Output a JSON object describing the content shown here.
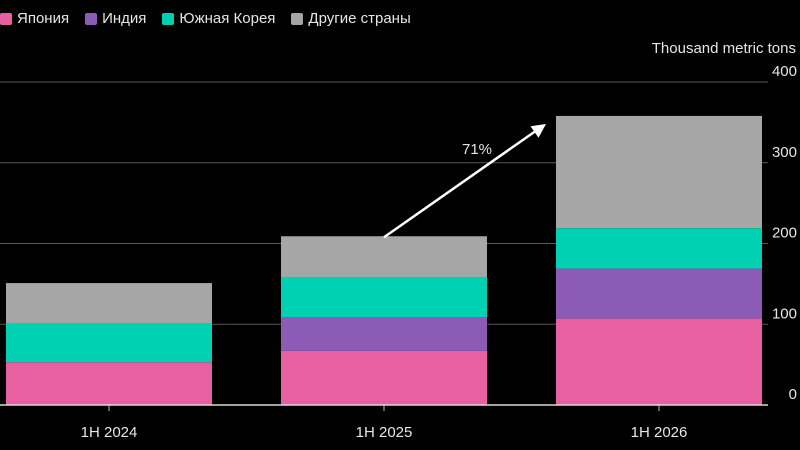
{
  "chart_data": {
    "type": "bar",
    "stacked": true,
    "categories": [
      "1H 2024",
      "1H 2025",
      "1H 2026"
    ],
    "series": [
      {
        "name": "Япония",
        "color": "#e8609f",
        "values": [
          53,
          67,
          107
        ]
      },
      {
        "name": "Индия",
        "color": "#8b5bb5",
        "values": [
          0,
          42,
          62
        ]
      },
      {
        "name": "Южная Корея",
        "color": "#00d1b2",
        "values": [
          48,
          49,
          50
        ]
      },
      {
        "name": "Другие страны",
        "color": "#a6a6a6",
        "values": [
          50,
          51,
          139
        ]
      }
    ],
    "ylabel": "Thousand metric tons",
    "ylim": [
      0,
      400
    ],
    "yticks": [
      0,
      100,
      200,
      300,
      400
    ],
    "annotation": "71%",
    "grid": true,
    "legend_position": "top-left"
  }
}
